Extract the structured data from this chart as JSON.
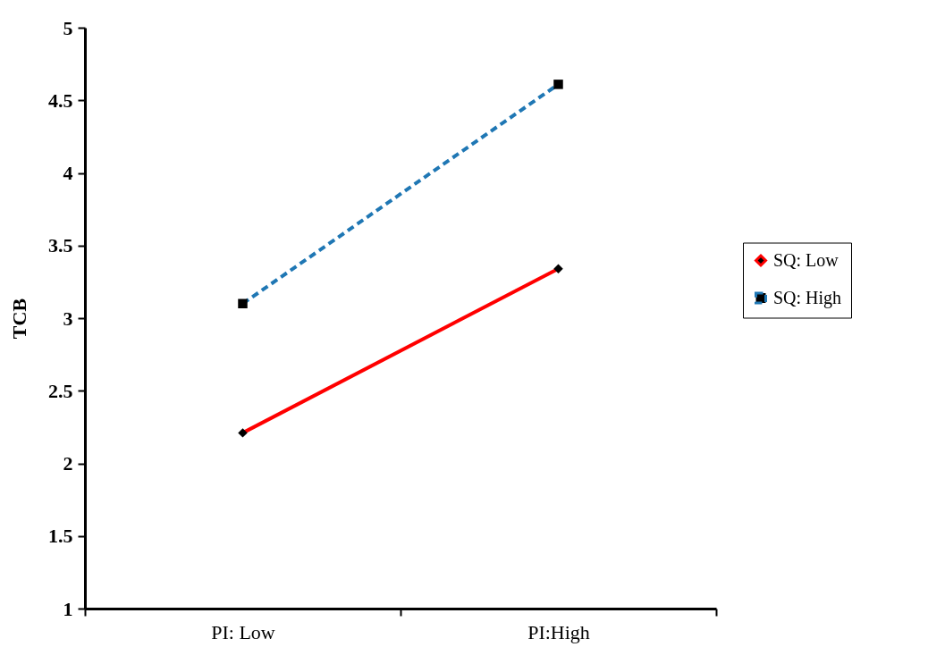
{
  "chart_data": {
    "type": "line",
    "ylabel": "TCB",
    "categories": [
      "PI: Low",
      "PI:High"
    ],
    "series": [
      {
        "name": "SQ: Low",
        "color": "#ff0000",
        "values": [
          2.21,
          3.34
        ],
        "marker": "diamond",
        "line_style": "solid"
      },
      {
        "name": "SQ: High",
        "color": "#1f77b4",
        "values": [
          3.1,
          4.61
        ],
        "marker": "square",
        "line_style": "dashed"
      }
    ],
    "ylim": [
      1,
      5
    ],
    "yticks": [
      1,
      1.5,
      2,
      2.5,
      3,
      3.5,
      4,
      4.5,
      5
    ],
    "grid": false,
    "legend": "right"
  }
}
